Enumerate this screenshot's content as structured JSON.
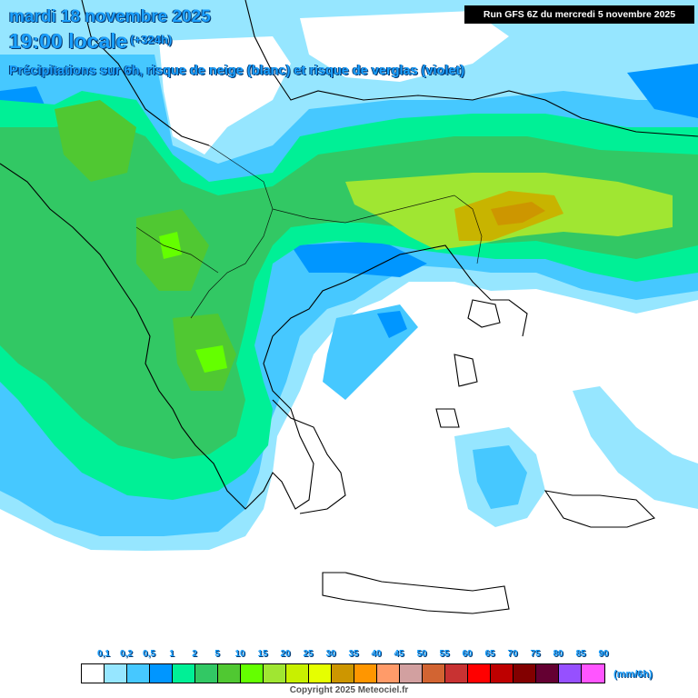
{
  "header": {
    "date_line": "mardi 18 novembre 2025",
    "time_line": "19:00 locale",
    "lead_time": "(+324h)",
    "subtitle": "Précipitations sur 6h, risque de neige (blanc) et risque de verglas (violet)",
    "run_info": "Run GFS 6Z du mercredi 5 novembre 2025"
  },
  "legend": {
    "ticks": [
      "0,1",
      "0,2",
      "0,5",
      "1",
      "2",
      "5",
      "10",
      "15",
      "20",
      "25",
      "30",
      "35",
      "40",
      "45",
      "50",
      "55",
      "60",
      "65",
      "70",
      "75",
      "80",
      "85",
      "90"
    ],
    "colors": [
      "#ffffff",
      "#96e6ff",
      "#46c8ff",
      "#0096ff",
      "#00f096",
      "#32c864",
      "#50c832",
      "#64ff00",
      "#a0e632",
      "#c8f000",
      "#e6ff00",
      "#cd9600",
      "#ff9600",
      "#ff9b69",
      "#d2a0a0",
      "#d26432",
      "#c83232",
      "#ff0000",
      "#be0000",
      "#820000",
      "#640032",
      "#9650ff",
      "#ff55ff"
    ],
    "units": "(mm/6h)"
  },
  "map": {
    "region": "Greece / Balkans / Western Turkey",
    "colors": {
      "sea": "#ffffff",
      "coast": "#000000",
      "light_blue": "#96e6ff",
      "blue": "#46c8ff",
      "deep_blue": "#0096ff",
      "aqua_green": "#00f096",
      "green": "#32c864",
      "mid_green": "#50c832",
      "yellow_green": "#a0e632",
      "olive": "#c8b400",
      "orange": "#cd9600"
    }
  },
  "footer": {
    "copyright": "Copyright 2025 Meteociel.fr"
  }
}
